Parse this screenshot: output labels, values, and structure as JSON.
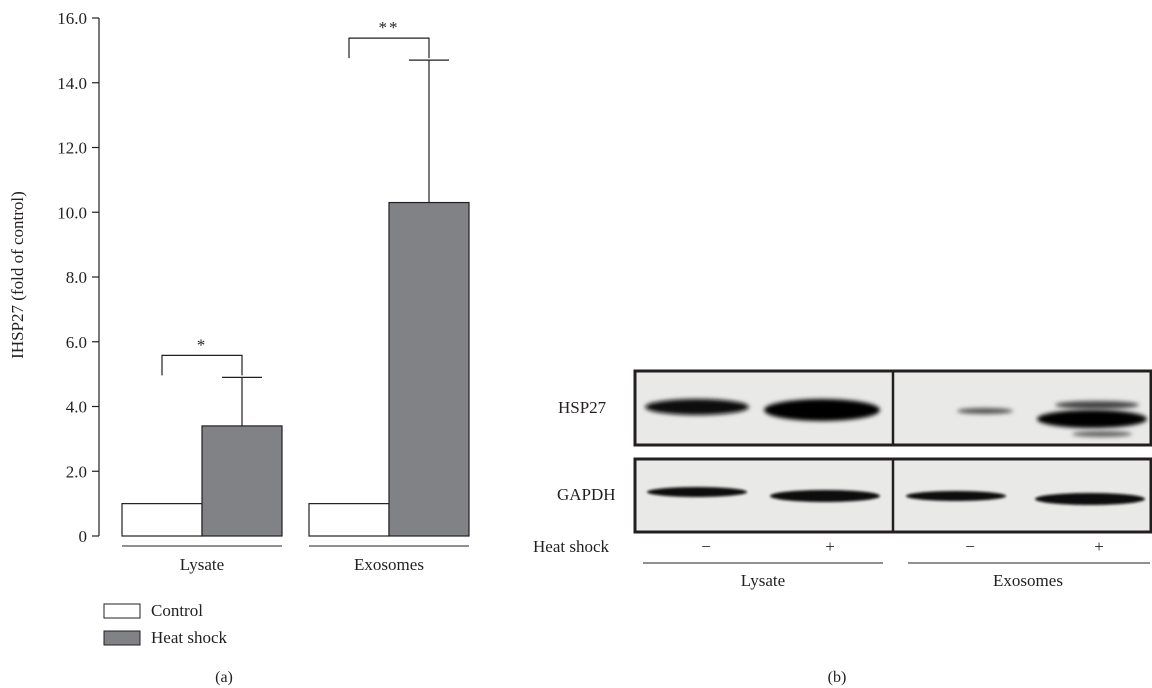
{
  "chart_data": [
    {
      "type": "bar",
      "panel_label": "(a)",
      "ylabel": "IHSP27 (fold of control)",
      "ylim": [
        0,
        16
      ],
      "yticks": [
        0,
        2,
        4,
        6,
        8,
        10,
        12,
        14,
        16
      ],
      "ytick_labels": [
        "0",
        "2.0",
        "4.0",
        "6.0",
        "8.0",
        "10.0",
        "12.0",
        "14.0",
        "16.0"
      ],
      "categories": [
        "Lysate",
        "Exosomes"
      ],
      "series": [
        {
          "name": "Control",
          "values": [
            1.0,
            1.0
          ],
          "error": [
            0,
            0
          ],
          "color": "#ffffff"
        },
        {
          "name": "Heat shock",
          "values": [
            3.4,
            10.3
          ],
          "error": [
            1.5,
            4.4
          ],
          "color": "#808285"
        }
      ],
      "significance": [
        "*",
        "**"
      ],
      "legend": [
        "Control",
        "Heat shock"
      ],
      "legend_placement": "bottom-left",
      "grid": false
    },
    {
      "type": "blot",
      "panel_label": "(b)",
      "rows": [
        "HSP27",
        "GAPDH"
      ],
      "condition_label": "Heat shock",
      "lanes": [
        "−",
        "+",
        "−",
        "+"
      ],
      "groups": [
        "Lysate",
        "Exosomes"
      ]
    }
  ]
}
